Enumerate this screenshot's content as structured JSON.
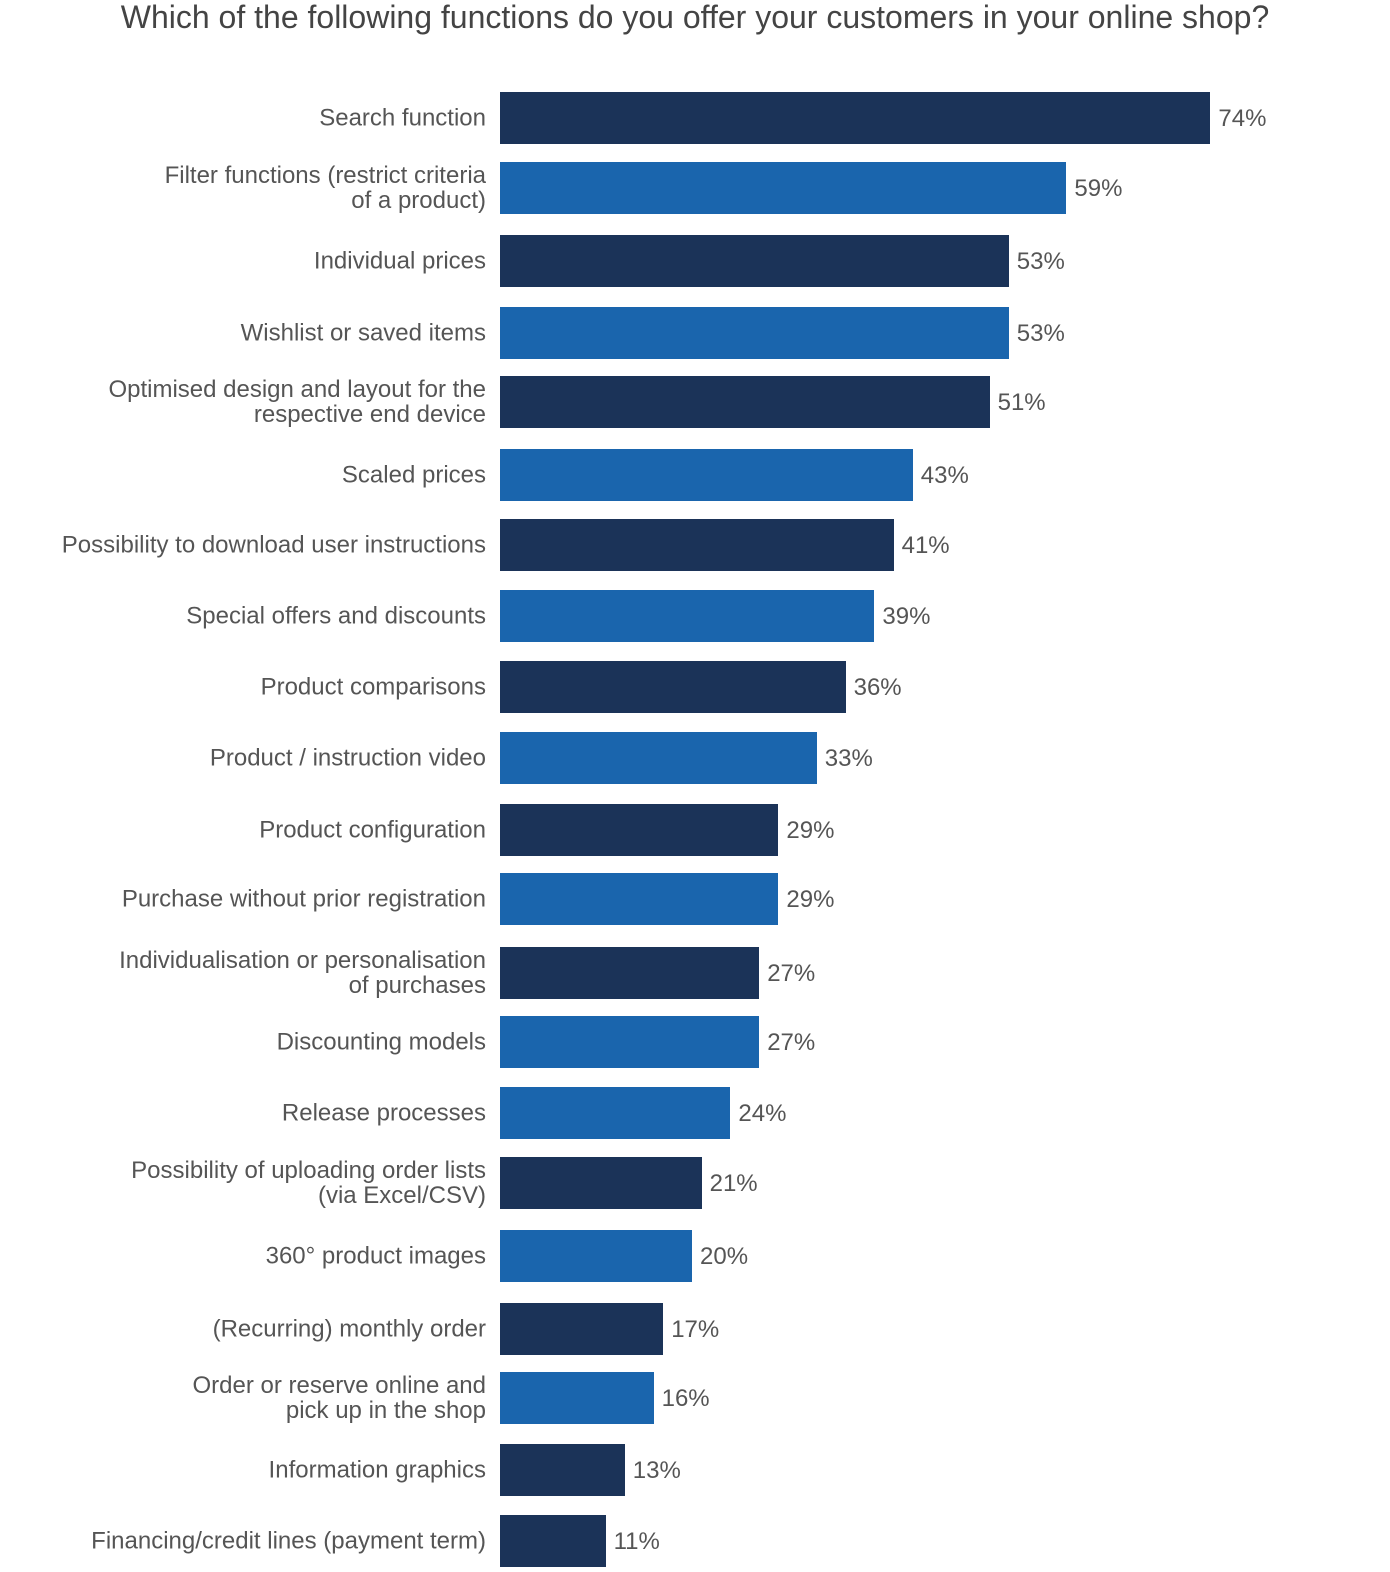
{
  "chart_data": {
    "type": "bar",
    "orientation": "horizontal",
    "title": "Which of the following functions do you offer your customers in your online shop?",
    "xlim": [
      0,
      100
    ],
    "grid": false,
    "unit": "%",
    "colors": {
      "dark": "#1b3358",
      "light": "#1a65ad"
    },
    "categories": [
      "Search function",
      "Filter functions (restrict criteria\nof a product)",
      "Individual prices",
      "Wishlist or saved items",
      "Optimised design and layout for the\nrespective end device",
      "Scaled prices",
      "Possibility to download user instructions",
      "Special offers and discounts",
      "Product comparisons",
      "Product / instruction video",
      "Product configuration",
      "Purchase without prior registration",
      "Individualisation or personalisation\nof purchases",
      "Discounting models",
      "Release processes",
      "Possibility of uploading order lists\n(via Excel/CSV)",
      "360° product images",
      "(Recurring) monthly order",
      "Order or reserve online and\npick up in the shop",
      "Information graphics",
      "Financing/credit lines (payment term)"
    ],
    "values": [
      74,
      59,
      53,
      53,
      51,
      43,
      41,
      39,
      36,
      33,
      29,
      29,
      27,
      27,
      24,
      21,
      20,
      17,
      16,
      13,
      11
    ],
    "value_labels": [
      "74%",
      "59%",
      "53%",
      "53%",
      "51%",
      "43%",
      "41%",
      "39%",
      "36%",
      "33%",
      "29%",
      "29%",
      "27%",
      "27%",
      "24%",
      "21%",
      "20%",
      "17%",
      "16%",
      "13%",
      "11%"
    ],
    "bar_color_keys": [
      "dark",
      "light",
      "dark",
      "light",
      "dark",
      "light",
      "dark",
      "light",
      "dark",
      "light",
      "dark",
      "light",
      "dark",
      "light",
      "light",
      "dark",
      "light",
      "dark",
      "light",
      "dark",
      "dark"
    ]
  }
}
